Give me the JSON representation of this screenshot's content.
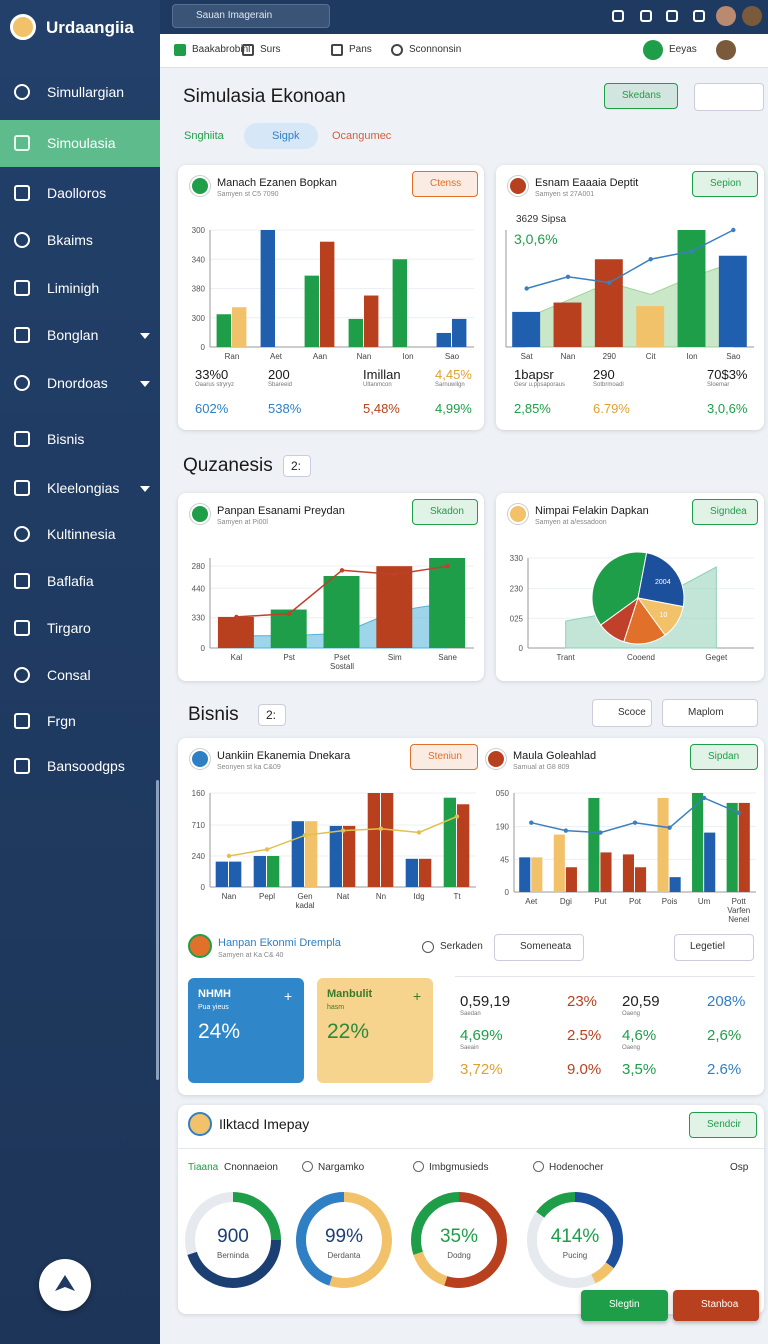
{
  "sidebar": {
    "brand": "Urdaangiia",
    "items": [
      {
        "label": "Simullargian"
      },
      {
        "label": "Simoulasia",
        "active": true
      },
      {
        "label": "Daolloros"
      },
      {
        "label": "Bkaims"
      },
      {
        "label": "Liminigh"
      },
      {
        "label": "Bonglan",
        "submenu": true
      },
      {
        "label": "Dnordoas",
        "submenu": true
      },
      {
        "label": "Bisnis"
      },
      {
        "label": "Kleelongias",
        "submenu": true
      },
      {
        "label": "Kultinnesia"
      },
      {
        "label": "Baflafia"
      },
      {
        "label": "Tirgaro"
      },
      {
        "label": "Consal"
      },
      {
        "label": "Frgn"
      },
      {
        "label": "Bansoodgps"
      }
    ]
  },
  "topbar": {
    "search": "Sauan Imagerain"
  },
  "toolbar": {
    "items": [
      "Baakabrobinl",
      "Surs",
      "Pans",
      "Sconnonsin"
    ],
    "user": "Eeyas"
  },
  "page": {
    "title": "Simulasia Ekonoan",
    "action": "Skedans",
    "tabs": [
      "Snghiita",
      "Sigpk",
      "Ocangumec"
    ],
    "tab_colors": [
      "#1e9e48",
      "#2f7fc4",
      "#d2603a"
    ]
  },
  "cards": [
    {
      "title": "Manach Ezanen Bopkan",
      "subtitle": "Samyen st C5 7090",
      "button": "Ctenss",
      "button_color": "#e0702a",
      "icon_color": "#1e9e48",
      "chart": {
        "ylim": [
          0,
          100
        ],
        "yticks": [
          0,
          {
            "value": 25,
            "label": "300"
          },
          {
            "value": 50,
            "label": "380"
          },
          {
            "value": 75,
            "label": "340"
          },
          {
            "value": 100,
            "label": "300"
          }
        ],
        "categories": [
          "Ran",
          "Aet",
          "Aan",
          "Nan",
          "Ion",
          "Sao"
        ],
        "series": [
          {
            "kind": "bar",
            "values": [
              28,
              100,
              61,
              24,
              75,
              12
            ],
            "colors": [
              "#1e9e48",
              "#1f5fae",
              "#1e9e48",
              "#1e9e48",
              "#1e9e48",
              "#1f5fae"
            ]
          },
          {
            "kind": "bar",
            "values": [
              34,
              0,
              90,
              44,
              0,
              24
            ],
            "colors": [
              "#f2c26b",
              "#1f5fae",
              "#b8401f",
              "#b8401f",
              "#1e9e48",
              "#1f5fae"
            ]
          }
        ]
      },
      "stats": [
        {
          "value": "33%0",
          "label": "Oaarus stryryz",
          "delta": "602%",
          "color": "#2f7fc4"
        },
        {
          "value": "200",
          "label": "Sbareeid",
          "delta": "538%",
          "color": "#2f7fc4"
        },
        {
          "value": "Imillan",
          "label": "Ultanmcon",
          "delta": "5,48%",
          "color": "#b8401f"
        },
        {
          "value": "4,45%",
          "label": "Sarnuwilgn",
          "delta": "4,99%",
          "color": "#1e9e48",
          "value_color": "#e0a030"
        }
      ]
    },
    {
      "title": "Esnam Eaaaia Deptit",
      "subtitle": "Samyen st 27A001",
      "button": "Sepion",
      "button_color": "#1e9e48",
      "icon_color": "#b8401f",
      "headline": "3629 Sipsa",
      "headline_delta": "3,0,6%",
      "chart": {
        "ylim": [
          0,
          100
        ],
        "categories": [
          "Sat",
          "Nan",
          "290",
          "Cit",
          "Ion",
          "Sao"
        ],
        "series": [
          {
            "kind": "area",
            "values": [
              25,
              40,
              55,
              45,
              60,
              72
            ],
            "color": "#9fd39a"
          },
          {
            "kind": "bar",
            "values": [
              30,
              38,
              75,
              35,
              100,
              78
            ],
            "colors": [
              "#1f5fae",
              "#b8401f",
              "#b8401f",
              "#f2c26b",
              "#1e9e48",
              "#1f5fae"
            ]
          },
          {
            "kind": "line",
            "values": [
              50,
              60,
              55,
              75,
              82,
              100
            ],
            "color": "#3a7fc0"
          }
        ]
      },
      "stats": [
        {
          "value": "1bapsr",
          "label": "Gesr u.ppsaporaus",
          "delta": "2,85%",
          "color": "#1e9e48"
        },
        {
          "value": "290",
          "label": "Sotbrmoadl",
          "delta": "6.79%",
          "color": "#e0a030"
        },
        {
          "value": "70$3%",
          "label": "Sloemar",
          "delta": "3,0,6%",
          "color": "#1e9e48"
        }
      ]
    },
    {
      "title": "Panpan Esanami Preydan",
      "subtitle": "Samyen at Pi00l",
      "button": "Skadon",
      "button_color": "#1e9e48",
      "icon_color": "#1e9e48",
      "chart": {
        "ylim": [
          0,
          110
        ],
        "yticks": [
          0,
          {
            "value": 37,
            "label": "330"
          },
          {
            "value": 73,
            "label": "440"
          },
          {
            "value": 100,
            "label": "280"
          }
        ],
        "categories": [
          "Kal",
          "Pst",
          "Pset\nSostall",
          "Sim",
          "Sane"
        ],
        "series": [
          {
            "kind": "area",
            "values": [
              15,
              15,
              18,
              45,
              55
            ],
            "color": "#4fb3d9"
          },
          {
            "kind": "bar",
            "values": [
              38,
              47,
              88,
              100,
              110
            ],
            "colors": [
              "#b8401f",
              "#1e9e48",
              "#1e9e48",
              "#b8401f",
              "#1e9e48"
            ]
          },
          {
            "kind": "line",
            "values": [
              38,
              42,
              95,
              90,
              100
            ],
            "color": "#c0402a"
          }
        ]
      }
    },
    {
      "title": "Nimpai Felakin Dapkan",
      "subtitle": "Samyen at a/essadoon",
      "button": "Signdea",
      "button_color": "#1e9e48",
      "icon_color": "#f2c26b",
      "chart": {
        "ylim": [
          0,
          100
        ],
        "yticks": [
          0,
          {
            "value": 33,
            "label": "025"
          },
          {
            "value": 66,
            "label": "230"
          },
          {
            "value": 100,
            "label": "330"
          }
        ],
        "categories": [
          "Trant",
          "Cooend",
          "Geget"
        ],
        "series": [
          {
            "kind": "area",
            "values": [
              30,
              45,
              90
            ],
            "color": "#8fd0b8"
          }
        ]
      },
      "pie": {
        "values": [
          38,
          25,
          12,
          15,
          10
        ],
        "colors": [
          "#1e9e48",
          "#1c4f9c",
          "#f2c26b",
          "#e0702a",
          "#c0402a"
        ],
        "annotations": [
          "2004",
          "10"
        ]
      }
    }
  ],
  "sections": [
    {
      "title": "Quzanesis",
      "badge": "2:"
    },
    {
      "title": "Bisnis",
      "badge": "2:",
      "buttons": [
        "Scoce",
        "Maplom"
      ]
    }
  ],
  "wide_card": {
    "left": {
      "title": "Uankiin Ekanemia Dnekara",
      "subtitle": "Seonyen st ka C&09",
      "button": "Steniun",
      "button_color": "#e0702a",
      "icon_color": "#2f7fc4",
      "chart": {
        "ylim": [
          0,
          100
        ],
        "yticks": [
          0,
          {
            "value": 33,
            "label": "240"
          },
          {
            "value": 66,
            "label": "710"
          },
          {
            "value": 100,
            "label": "160"
          }
        ],
        "categories": [
          "Nan",
          "Pepl",
          "Gen\nkadal",
          "Nat",
          "Nn",
          "Idg",
          "Tt"
        ],
        "series": [
          {
            "kind": "bar",
            "values": [
              27,
              33,
              70,
              65,
              100,
              30,
              95
            ],
            "colors": [
              "#1f5fae",
              "#1f5fae",
              "#1f5fae",
              "#1f5fae",
              "#b8401f",
              "#1f5fae",
              "#1e9e48"
            ]
          },
          {
            "kind": "bar",
            "values": [
              27,
              33,
              70,
              65,
              100,
              30,
              88
            ],
            "colors": [
              "#1f5fae",
              "#1e9e48",
              "#f2c26b",
              "#b8401f",
              "#b8401f",
              "#b8401f",
              "#b8401f"
            ]
          },
          {
            "kind": "line",
            "values": [
              33,
              40,
              55,
              60,
              62,
              58,
              75
            ],
            "color": "#e0c050"
          }
        ]
      }
    },
    "right": {
      "title": "Maula Goleahlad",
      "subtitle": "Samual at G8 809",
      "button": "Sipdan",
      "button_color": "#1e9e48",
      "icon_color": "#b8401f",
      "chart": {
        "ylim": [
          0,
          100
        ],
        "yticks": [
          0,
          {
            "value": 33,
            "label": "45"
          },
          {
            "value": 66,
            "label": "190"
          },
          {
            "value": 100,
            "label": "050"
          }
        ],
        "categories": [
          "Aet",
          "Dgi",
          "Put",
          "Pot",
          "Pois",
          "Um",
          "Pott\nVarfen\nNenel"
        ],
        "series": [
          {
            "kind": "bar",
            "values": [
              35,
              58,
              95,
              38,
              95,
              100,
              90
            ],
            "colors": [
              "#1f5fae",
              "#f2c26b",
              "#1e9e48",
              "#b8401f",
              "#f2c26b",
              "#1e9e48",
              "#1e9e48"
            ]
          },
          {
            "kind": "bar",
            "values": [
              35,
              25,
              40,
              25,
              15,
              60,
              90
            ],
            "colors": [
              "#f2c26b",
              "#b8401f",
              "#b8401f",
              "#b8401f",
              "#1f5fae",
              "#1f5fae",
              "#b8401f"
            ]
          },
          {
            "kind": "line",
            "values": [
              70,
              62,
              60,
              70,
              65,
              95,
              80
            ],
            "color": "#3a7fc0"
          }
        ]
      }
    },
    "summary": {
      "title": "Hanpan Ekonmi Drempla",
      "subtitle": "Samyen at Ka C& 40",
      "filter": "Serkaden",
      "button": "Someneata",
      "dropdown": "Legetiel",
      "tiles": [
        {
          "title": "NHMH",
          "label": "Pua yieus",
          "value": "24%",
          "color": "#2f86c8"
        },
        {
          "title": "Manbulit",
          "label": "hasm",
          "value": "22%",
          "color": "#f7d48e"
        }
      ],
      "rows": [
        [
          {
            "value": "0,59,19",
            "sub": "Saedan",
            "color": "#222"
          },
          {
            "value": "23%",
            "color": "#b8401f"
          },
          {
            "value": "20,59",
            "sub": "Oaeng",
            "color": "#222"
          },
          {
            "value": "208%",
            "color": "#2f7fc4"
          }
        ],
        [
          {
            "value": "4,69%",
            "sub": "Saeain",
            "color": "#1e9e48"
          },
          {
            "value": "2.5%",
            "color": "#b8401f"
          },
          {
            "value": "4,6%",
            "sub": "Oaeng",
            "color": "#1e9e48"
          },
          {
            "value": "2,6%",
            "color": "#1e9e48"
          }
        ],
        [
          {
            "value": "3,72%",
            "color": "#e0a030"
          },
          {
            "value": "9.0%",
            "color": "#b8401f"
          },
          {
            "value": "3,5%",
            "color": "#1e9e48"
          },
          {
            "value": "2.6%",
            "color": "#2f7fc4"
          }
        ]
      ]
    }
  },
  "impact": {
    "title": "Ilktacd Imepay",
    "button": "Sendcir",
    "legend": {
      "lead": "Tiaana",
      "items": [
        "Cnonnaeion",
        "Nargamko",
        "Imbgmusieds",
        "Hodenocher"
      ],
      "extra": "Osp"
    },
    "donuts": [
      {
        "center": "900",
        "caption": "Berninda",
        "color": "#1c3f73",
        "segments": [
          {
            "value": 25,
            "color": "#1e9e48"
          },
          {
            "value": 45,
            "color": "#1c3f73"
          },
          {
            "value": 30,
            "color": "#e6e9ee"
          }
        ]
      },
      {
        "center": "99%",
        "caption": "Derdanta",
        "color": "#1c3f73",
        "segments": [
          {
            "value": 55,
            "color": "#f2c26b"
          },
          {
            "value": 45,
            "color": "#2f7fc4"
          }
        ]
      },
      {
        "center": "35%",
        "caption": "Dodng",
        "color": "#1e9e48",
        "segments": [
          {
            "value": 55,
            "color": "#b8401f"
          },
          {
            "value": 15,
            "color": "#f2c26b"
          },
          {
            "value": 30,
            "color": "#1e9e48"
          }
        ]
      },
      {
        "center": "414%",
        "caption": "Pucing",
        "color": "#1e9e48",
        "segments": [
          {
            "value": 35,
            "color": "#1c4f9c"
          },
          {
            "value": 8,
            "color": "#f2c26b"
          },
          {
            "value": 42,
            "color": "#e6e9ee"
          },
          {
            "value": 15,
            "color": "#1e9e48"
          }
        ]
      }
    ]
  },
  "fab": [
    "Slegtin",
    "Stanboa"
  ]
}
